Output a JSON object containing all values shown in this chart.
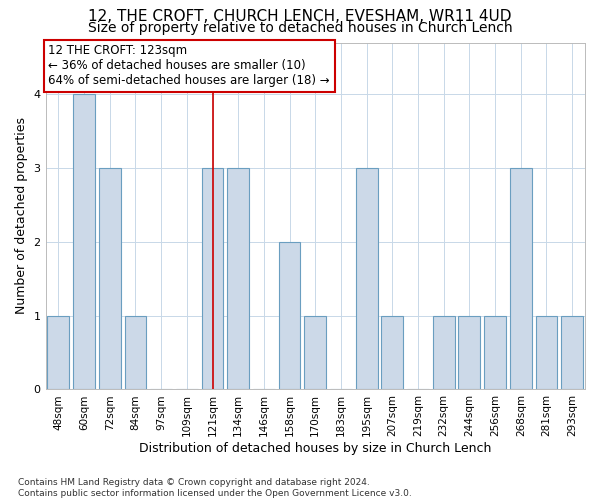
{
  "title_line1": "12, THE CROFT, CHURCH LENCH, EVESHAM, WR11 4UD",
  "title_line2": "Size of property relative to detached houses in Church Lench",
  "xlabel": "Distribution of detached houses by size in Church Lench",
  "ylabel": "Number of detached properties",
  "footnote": "Contains HM Land Registry data © Crown copyright and database right 2024.\nContains public sector information licensed under the Open Government Licence v3.0.",
  "bar_labels": [
    "48sqm",
    "60sqm",
    "72sqm",
    "84sqm",
    "97sqm",
    "109sqm",
    "121sqm",
    "134sqm",
    "146sqm",
    "158sqm",
    "170sqm",
    "183sqm",
    "195sqm",
    "207sqm",
    "219sqm",
    "232sqm",
    "244sqm",
    "256sqm",
    "268sqm",
    "281sqm",
    "293sqm"
  ],
  "bar_values": [
    1,
    4,
    3,
    1,
    0,
    0,
    3,
    3,
    0,
    2,
    1,
    0,
    3,
    1,
    0,
    1,
    1,
    1,
    3,
    1,
    1
  ],
  "bar_color": "#ccd9e8",
  "bar_edgecolor": "#6a9ec0",
  "reference_x_label": "121sqm",
  "reference_line_color": "#cc0000",
  "annotation_text": "12 THE CROFT: 123sqm\n← 36% of detached houses are smaller (10)\n64% of semi-detached houses are larger (18) →",
  "annotation_box_edgecolor": "#cc0000",
  "annotation_box_facecolor": "#ffffff",
  "ylim": [
    0,
    4.7
  ],
  "yticks": [
    0,
    1,
    2,
    3,
    4
  ],
  "bg_color": "#ffffff",
  "grid_color": "#c8d8e8",
  "title1_fontsize": 11,
  "title2_fontsize": 10,
  "xlabel_fontsize": 9,
  "ylabel_fontsize": 9,
  "tick_fontsize": 7.5,
  "annotation_fontsize": 8.5,
  "footnote_fontsize": 6.5
}
